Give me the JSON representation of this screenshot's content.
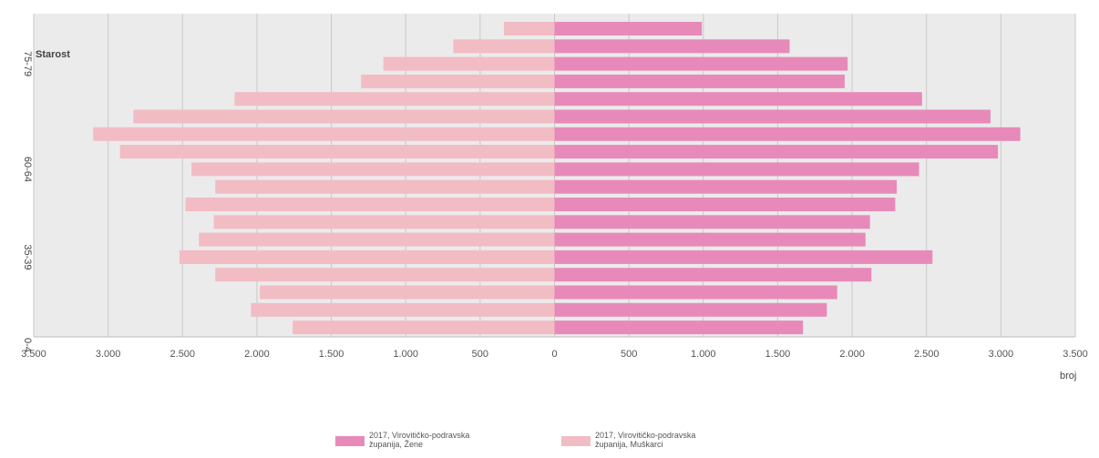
{
  "chart_data": {
    "type": "bar",
    "orientation": "horizontal-pyramid",
    "ylabel": "Starost",
    "xlabel": "broj",
    "xlim": [
      -3500,
      3500
    ],
    "x_ticks": [
      "3.500",
      "3.000",
      "2.500",
      "2.000",
      "1.500",
      "1.000",
      "500",
      "0",
      "500",
      "1.000",
      "1.500",
      "2.000",
      "2.500",
      "3.000",
      "3.500"
    ],
    "x_tick_values": [
      -3500,
      -3000,
      -2500,
      -2000,
      -1500,
      -1000,
      -500,
      0,
      500,
      1000,
      1500,
      2000,
      2500,
      3000,
      3500
    ],
    "y_tick_labels": [
      "75-79",
      "60-64",
      "35-39",
      "0-4"
    ],
    "y_tick_indices": [
      2,
      8,
      13,
      18
    ],
    "grid": true,
    "legend_position": "bottom",
    "series": [
      {
        "name": "2017, Virovitičko-podravska županija, Žene",
        "legend_lines": [
          "2017, Virovitičko-podravska",
          "županija, Žene"
        ],
        "color": "#e78ab9",
        "side": "right",
        "values": [
          990,
          1580,
          1970,
          1950,
          2470,
          2930,
          3130,
          2980,
          2450,
          2300,
          2290,
          2120,
          2090,
          2540,
          2130,
          1900,
          1830,
          1670
        ]
      },
      {
        "name": "2017, Virovitičko-podravska županija, Muškarci",
        "legend_lines": [
          "2017, Virovitičko-podravska",
          "županija, Muškarci"
        ],
        "color": "#f2bcc5",
        "side": "left",
        "values": [
          340,
          680,
          1150,
          1300,
          2150,
          2830,
          3100,
          2920,
          2440,
          2280,
          2480,
          2290,
          2390,
          2520,
          2280,
          1980,
          2040,
          1760
        ]
      }
    ]
  }
}
